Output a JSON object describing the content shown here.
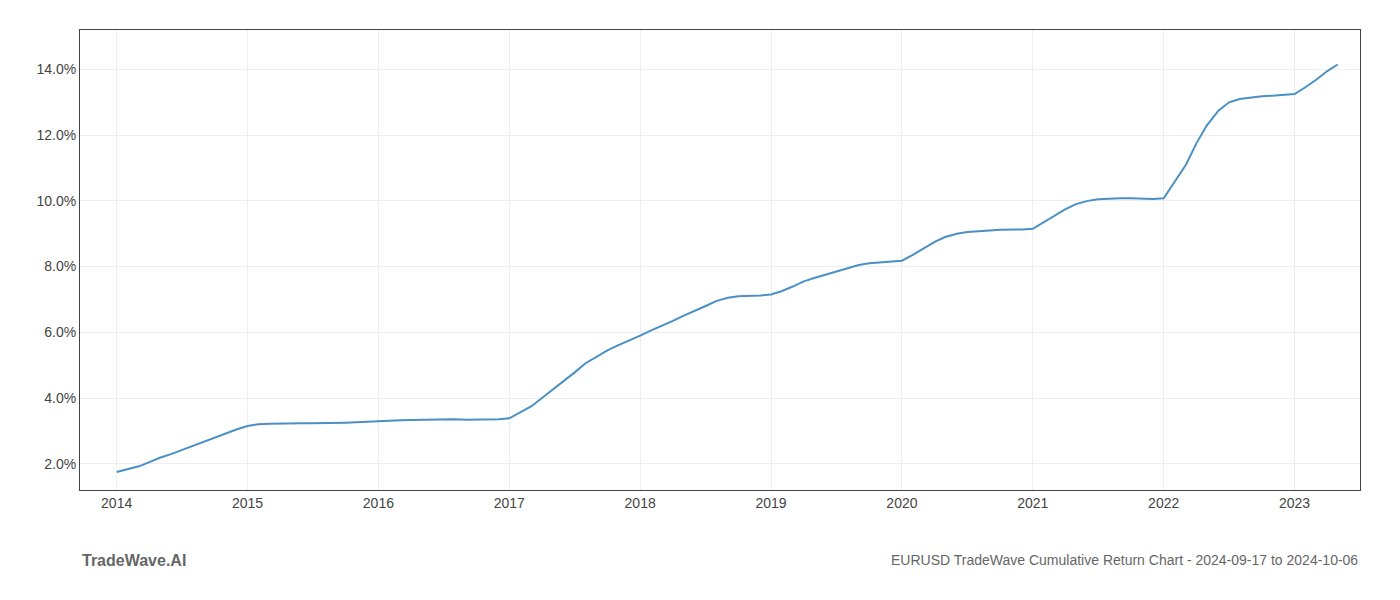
{
  "chart_data": {
    "type": "line",
    "title": "EURUSD TradeWave Cumulative Return Chart - 2024-09-17 to 2024-10-06",
    "annotations": [
      "TradeWave.AI"
    ],
    "color": "#4a90c4",
    "grid": true,
    "x": [
      2014.0,
      2014.08,
      2014.17,
      2014.25,
      2014.33,
      2014.42,
      2014.5,
      2014.58,
      2014.67,
      2014.75,
      2014.83,
      2014.92,
      2015.0,
      2015.08,
      2015.17,
      2015.25,
      2015.33,
      2015.42,
      2015.5,
      2015.58,
      2015.67,
      2015.75,
      2015.83,
      2015.92,
      2016.0,
      2016.08,
      2016.17,
      2016.25,
      2016.33,
      2016.42,
      2016.5,
      2016.58,
      2016.67,
      2016.75,
      2016.83,
      2016.92,
      2017.0,
      2017.08,
      2017.17,
      2017.25,
      2017.33,
      2017.42,
      2017.5,
      2017.58,
      2017.67,
      2017.75,
      2017.83,
      2017.92,
      2018.0,
      2018.08,
      2018.17,
      2018.25,
      2018.33,
      2018.42,
      2018.5,
      2018.58,
      2018.67,
      2018.75,
      2018.83,
      2018.92,
      2019.0,
      2019.08,
      2019.17,
      2019.25,
      2019.33,
      2019.42,
      2019.5,
      2019.58,
      2019.67,
      2019.75,
      2019.83,
      2019.92,
      2020.0,
      2020.08,
      2020.17,
      2020.25,
      2020.33,
      2020.42,
      2020.5,
      2020.58,
      2020.67,
      2020.75,
      2020.83,
      2020.92,
      2021.0,
      2021.08,
      2021.17,
      2021.25,
      2021.33,
      2021.42,
      2021.5,
      2021.58,
      2021.67,
      2021.75,
      2021.83,
      2021.92,
      2022.0,
      2022.08,
      2022.17,
      2022.25,
      2022.33,
      2022.42,
      2022.5,
      2022.58,
      2022.67,
      2022.75,
      2022.83,
      2022.92,
      2023.0,
      2023.08,
      2023.17,
      2023.25,
      2023.33
    ],
    "values": [
      1.75,
      1.82,
      1.92,
      2.05,
      2.18,
      2.3,
      2.42,
      2.55,
      2.68,
      2.8,
      2.92,
      3.05,
      3.15,
      3.2,
      3.22,
      3.23,
      3.23,
      3.23,
      3.23,
      3.23,
      3.24,
      3.25,
      3.26,
      3.28,
      3.3,
      3.31,
      3.32,
      3.33,
      3.34,
      3.35,
      3.36,
      3.35,
      3.34,
      3.34,
      3.34,
      3.35,
      3.38,
      3.55,
      3.75,
      4.0,
      4.25,
      4.52,
      4.78,
      5.05,
      5.25,
      5.45,
      5.6,
      5.75,
      5.9,
      6.05,
      6.2,
      6.35,
      6.5,
      6.65,
      6.8,
      6.95,
      7.05,
      7.1,
      7.1,
      7.12,
      7.15,
      7.25,
      7.4,
      7.55,
      7.65,
      7.75,
      7.85,
      7.95,
      8.05,
      8.1,
      8.13,
      8.15,
      8.18,
      8.35,
      8.55,
      8.75,
      8.9,
      9.0,
      9.05,
      9.08,
      9.1,
      9.12,
      9.12,
      9.13,
      9.15,
      9.35,
      9.55,
      9.75,
      9.9,
      10.0,
      10.05,
      10.07,
      10.08,
      10.08,
      10.07,
      10.06,
      10.08,
      10.55,
      11.1,
      11.75,
      12.3,
      12.75,
      13.0,
      13.1,
      13.15,
      13.18,
      13.2,
      13.22,
      13.25,
      13.45,
      13.7,
      13.95,
      14.15
    ],
    "xlim": [
      2013.72,
      2023.5
    ],
    "xticks": [
      2014,
      2015,
      2016,
      2017,
      2018,
      2019,
      2020,
      2021,
      2022,
      2023
    ],
    "ylim": [
      1.2,
      15.2
    ],
    "yticks": [
      {
        "value": 2.0,
        "label": "2.0%"
      },
      {
        "value": 4.0,
        "label": "4.0%"
      },
      {
        "value": 6.0,
        "label": "6.0%"
      },
      {
        "value": 8.0,
        "label": "8.0%"
      },
      {
        "value": 10.0,
        "label": "10.0%"
      },
      {
        "value": 12.0,
        "label": "12.0%"
      },
      {
        "value": 14.0,
        "label": "14.0%"
      }
    ]
  }
}
